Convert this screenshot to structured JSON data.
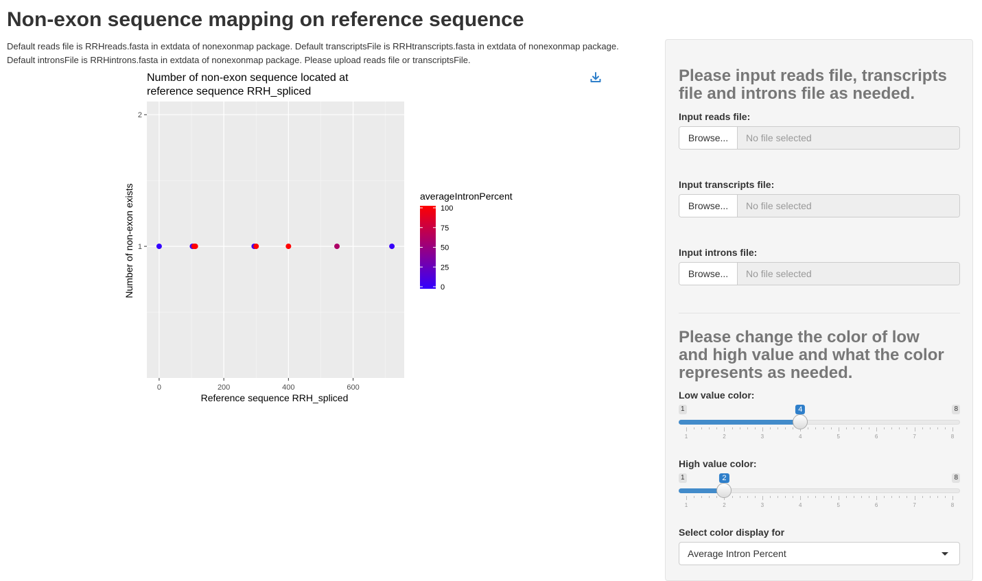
{
  "page": {
    "title": "Non-exon sequence mapping on reference sequence",
    "description": "Default reads file is RRHreads.fasta in extdata of nonexonmap package. Default transcriptsFile is RRHtranscripts.fasta in extdata of nonexonmap package. Default intronsFile is RRHintrons.fasta in extdata of nonexonmap package. Please upload reads file or transcriptsFile."
  },
  "download": {
    "icon": "download-icon"
  },
  "chart_data": {
    "type": "scatter",
    "title_lines": [
      "Number of non-exon sequence located at",
      "reference sequence RRH_spliced"
    ],
    "xlabel": "Reference sequence RRH_spliced",
    "ylabel": "Number of non-exon exists",
    "xlim": [
      -38,
      758
    ],
    "ylim": [
      0.0,
      2.1
    ],
    "xticks": [
      0,
      200,
      400,
      600
    ],
    "yticks": [
      1,
      2
    ],
    "grid": true,
    "legend": {
      "title": "averageIntronPercent",
      "placement": "right",
      "ticks": [
        100,
        75,
        50,
        25,
        0
      ],
      "low_color": "#3300ff",
      "high_color": "#ff0000"
    },
    "points": [
      {
        "x": 0,
        "y": 1,
        "color_value": 0
      },
      {
        "x": 103,
        "y": 1,
        "color_value": 5
      },
      {
        "x": 108,
        "y": 1,
        "color_value": 100
      },
      {
        "x": 112,
        "y": 1,
        "color_value": 100
      },
      {
        "x": 294,
        "y": 1,
        "color_value": 8
      },
      {
        "x": 300,
        "y": 1,
        "color_value": 100
      },
      {
        "x": 400,
        "y": 1,
        "color_value": 100
      },
      {
        "x": 550,
        "y": 1,
        "color_value": 60
      },
      {
        "x": 720,
        "y": 1,
        "color_value": 2
      }
    ]
  },
  "sidebar": {
    "heading1": "Please input reads file, transcripts file and introns file as needed.",
    "reads": {
      "label": "Input reads file:",
      "button": "Browse...",
      "placeholder": "No file selected"
    },
    "transcripts": {
      "label": "Input transcripts file:",
      "button": "Browse...",
      "placeholder": "No file selected"
    },
    "introns": {
      "label": "Input introns file:",
      "button": "Browse...",
      "placeholder": "No file selected"
    },
    "heading2": "Please change the color of low and high value and what the color represents as needed.",
    "low_slider": {
      "label": "Low value color:",
      "min": 1,
      "max": 8,
      "value": 4
    },
    "high_slider": {
      "label": "High value color:",
      "min": 1,
      "max": 8,
      "value": 2
    },
    "select": {
      "label": "Select color display for",
      "value": "Average Intron Percent"
    }
  }
}
